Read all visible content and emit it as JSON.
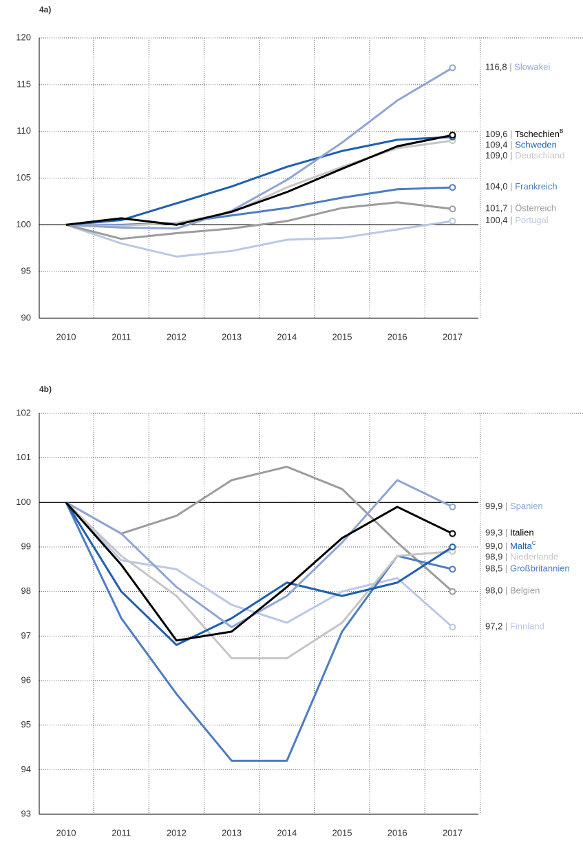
{
  "chart_data": [
    {
      "type": "line",
      "title": "4a)",
      "separator": "|",
      "categories": [
        "2010",
        "2011",
        "2012",
        "2013",
        "2014",
        "2015",
        "2016",
        "2017"
      ],
      "ylim": [
        90,
        120
      ],
      "yticks": [
        90,
        95,
        100,
        105,
        110,
        115,
        120
      ],
      "grid": true,
      "reference_line": 100,
      "series": [
        {
          "name": "Slowakei",
          "color": "#8fa6d4",
          "values": [
            100,
            99.7,
            99.6,
            101.5,
            104.8,
            108.8,
            113.3,
            116.8
          ],
          "value_labels": [
            null,
            null,
            null,
            null,
            null,
            null,
            null,
            "116,8"
          ]
        },
        {
          "name": "Tschechien",
          "note": "B",
          "color": "#000000",
          "values": [
            100,
            100.7,
            100.0,
            101.4,
            103.5,
            106.0,
            108.4,
            109.6
          ],
          "value_labels": [
            null,
            null,
            null,
            null,
            null,
            null,
            null,
            "109,6"
          ]
        },
        {
          "name": "Schweden",
          "color": "#1f5fb0",
          "values": [
            100,
            100.5,
            102.3,
            104.1,
            106.2,
            107.9,
            109.1,
            109.4
          ],
          "value_labels": [
            null,
            null,
            null,
            null,
            null,
            null,
            null,
            "109,4"
          ]
        },
        {
          "name": "Deutschland",
          "color": "#c6c6c6",
          "values": [
            100,
            99.9,
            100.2,
            101.3,
            104.0,
            106.2,
            108.2,
            109.0
          ],
          "value_labels": [
            null,
            null,
            null,
            null,
            null,
            null,
            null,
            "109,0"
          ]
        },
        {
          "name": "Frankreich",
          "color": "#4e7cc4",
          "values": [
            100,
            100.0,
            100.2,
            101.0,
            101.8,
            102.9,
            103.8,
            104.0
          ],
          "value_labels": [
            null,
            null,
            null,
            null,
            null,
            null,
            null,
            "104,0"
          ]
        },
        {
          "name": "Österreich",
          "color": "#9c9c9c",
          "values": [
            100,
            98.5,
            99.1,
            99.6,
            100.4,
            101.8,
            102.4,
            101.7
          ],
          "value_labels": [
            null,
            null,
            null,
            null,
            null,
            null,
            null,
            "101,7"
          ]
        },
        {
          "name": "Portugal",
          "color": "#b9c8e6",
          "values": [
            100,
            98.0,
            96.6,
            97.2,
            98.4,
            98.6,
            99.5,
            100.4
          ],
          "value_labels": [
            null,
            null,
            null,
            null,
            null,
            null,
            null,
            "100,4"
          ]
        }
      ]
    },
    {
      "type": "line",
      "title": "4b)",
      "separator": "|",
      "categories": [
        "2010",
        "2011",
        "2012",
        "2013",
        "2014",
        "2015",
        "2016",
        "2017"
      ],
      "ylim": [
        93,
        102
      ],
      "yticks": [
        93,
        94,
        95,
        96,
        97,
        98,
        99,
        100,
        101,
        102
      ],
      "grid": true,
      "reference_line": 100,
      "series": [
        {
          "name": "Spanien",
          "color": "#8fa6d4",
          "values": [
            100,
            99.3,
            98.1,
            97.2,
            97.9,
            99.1,
            100.5,
            99.9
          ],
          "value_labels": [
            null,
            null,
            null,
            null,
            null,
            null,
            null,
            "99,9"
          ]
        },
        {
          "name": "Italien",
          "color": "#000000",
          "values": [
            100,
            98.6,
            96.9,
            97.1,
            98.1,
            99.2,
            99.9,
            99.3
          ],
          "value_labels": [
            null,
            null,
            null,
            null,
            null,
            null,
            null,
            "99,3"
          ]
        },
        {
          "name": "Malta",
          "note": "C",
          "color": "#1f5fb0",
          "values": [
            100,
            98.0,
            96.8,
            97.4,
            98.2,
            97.9,
            98.2,
            99.0
          ],
          "value_labels": [
            null,
            null,
            null,
            null,
            null,
            null,
            null,
            "99,0"
          ]
        },
        {
          "name": "Niederlande",
          "color": "#c6c6c6",
          "values": [
            100,
            98.8,
            97.9,
            96.5,
            96.5,
            97.3,
            98.8,
            98.9
          ],
          "value_labels": [
            null,
            null,
            null,
            null,
            null,
            null,
            null,
            "98,9"
          ]
        },
        {
          "name": "Großbritannien",
          "color": "#4e7cc4",
          "values": [
            100,
            97.4,
            95.7,
            94.2,
            94.2,
            97.1,
            98.8,
            98.5
          ],
          "value_labels": [
            null,
            null,
            null,
            null,
            null,
            null,
            null,
            "98,5"
          ]
        },
        {
          "name": "Belgien",
          "color": "#9c9c9c",
          "values": [
            100,
            99.3,
            99.7,
            100.5,
            100.8,
            100.3,
            99.1,
            98.0
          ],
          "value_labels": [
            null,
            null,
            null,
            null,
            null,
            null,
            null,
            "98,0"
          ]
        },
        {
          "name": "Finnland",
          "color": "#b9c8e6",
          "values": [
            100,
            98.7,
            98.5,
            97.7,
            97.3,
            98.0,
            98.3,
            97.2
          ],
          "value_labels": [
            null,
            null,
            null,
            null,
            null,
            null,
            null,
            "97,2"
          ]
        }
      ]
    }
  ]
}
